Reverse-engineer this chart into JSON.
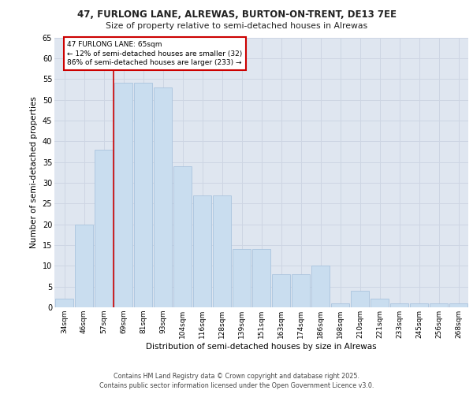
{
  "title1": "47, FURLONG LANE, ALREWAS, BURTON-ON-TRENT, DE13 7EE",
  "title2": "Size of property relative to semi-detached houses in Alrewas",
  "xlabel": "Distribution of semi-detached houses by size in Alrewas",
  "ylabel": "Number of semi-detached properties",
  "categories": [
    "34sqm",
    "46sqm",
    "57sqm",
    "69sqm",
    "81sqm",
    "93sqm",
    "104sqm",
    "116sqm",
    "128sqm",
    "139sqm",
    "151sqm",
    "163sqm",
    "174sqm",
    "186sqm",
    "198sqm",
    "210sqm",
    "221sqm",
    "233sqm",
    "245sqm",
    "256sqm",
    "268sqm"
  ],
  "values": [
    2,
    20,
    38,
    54,
    54,
    53,
    34,
    27,
    27,
    14,
    14,
    8,
    8,
    10,
    1,
    4,
    2,
    1,
    1,
    1,
    1
  ],
  "bar_color": "#c9ddef",
  "bar_edge_color": "#aac4de",
  "vline_color": "#cc0000",
  "annotation_box_color": "#cc0000",
  "marker_label": "47 FURLONG LANE: 65sqm",
  "marker_smaller_pct": "12%",
  "marker_smaller_n": 32,
  "marker_larger_pct": "86%",
  "marker_larger_n": 233,
  "ylim": [
    0,
    65
  ],
  "yticks": [
    0,
    5,
    10,
    15,
    20,
    25,
    30,
    35,
    40,
    45,
    50,
    55,
    60,
    65
  ],
  "grid_color": "#cdd5e3",
  "bg_color": "#dfe6f0",
  "footer1": "Contains HM Land Registry data © Crown copyright and database right 2025.",
  "footer2": "Contains public sector information licensed under the Open Government Licence v3.0."
}
